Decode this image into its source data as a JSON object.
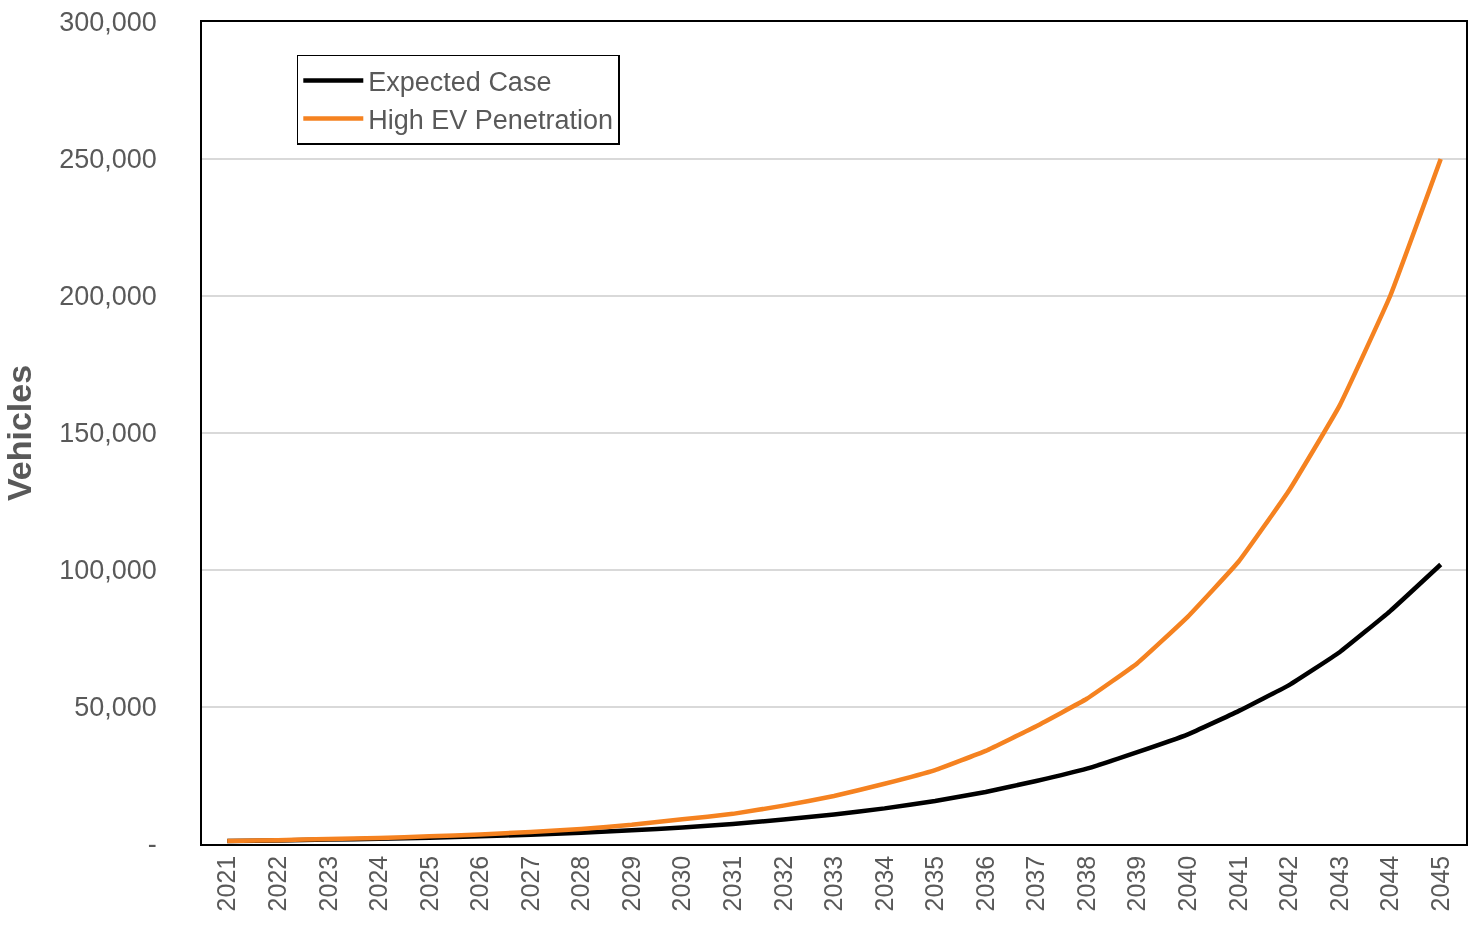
{
  "chart_data": {
    "type": "line",
    "ylabel": "Vehicles",
    "categories": [
      "2021",
      "2022",
      "2023",
      "2024",
      "2025",
      "2026",
      "2027",
      "2028",
      "2029",
      "2030",
      "2031",
      "2032",
      "2033",
      "2034",
      "2035",
      "2036",
      "2037",
      "2038",
      "2039",
      "2040",
      "2041",
      "2042",
      "2043",
      "2044",
      "2045"
    ],
    "series": [
      {
        "name": "Expected Case",
        "color": "#000000",
        "values": [
          1100,
          1300,
          1600,
          1900,
          2300,
          2800,
          3400,
          4100,
          5000,
          6000,
          7300,
          8900,
          10800,
          13000,
          15700,
          19000,
          23000,
          27500,
          33500,
          40000,
          48500,
          58000,
          70000,
          85000,
          102000
        ]
      },
      {
        "name": "High EV Penetration",
        "color": "#f58220",
        "values": [
          1100,
          1400,
          1800,
          2200,
          2800,
          3500,
          4400,
          5500,
          7000,
          9000,
          11000,
          14000,
          17500,
          22000,
          27000,
          34000,
          43000,
          53000,
          66000,
          83000,
          103000,
          129000,
          160000,
          200000,
          250000
        ]
      }
    ],
    "ylim": [
      0,
      300000
    ],
    "yticks": [
      {
        "value": 0,
        "label": "-"
      },
      {
        "value": 50000,
        "label": "50,000"
      },
      {
        "value": 100000,
        "label": "100,000"
      },
      {
        "value": 150000,
        "label": "150,000"
      },
      {
        "value": 200000,
        "label": "200,000"
      },
      {
        "value": 250000,
        "label": "250,000"
      },
      {
        "value": 300000,
        "label": "300,000"
      }
    ],
    "grid": "y",
    "legend": "top left",
    "marker": "none",
    "line_style": "solid"
  }
}
